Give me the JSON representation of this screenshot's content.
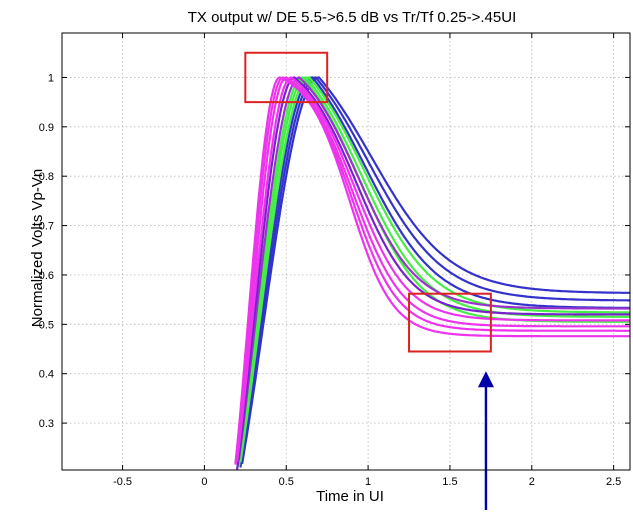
{
  "chart_data": {
    "type": "line",
    "title": "TX output w/ DE 5.5->6.5 dB vs Tr/Tf 0.25->.45UI",
    "xlabel": "Time in UI",
    "ylabel": "Normalized Volts Vp-Vn",
    "xlim": [
      -0.87,
      2.6
    ],
    "ylim": [
      0.205,
      1.09
    ],
    "x_ticks": [
      -0.5,
      0,
      0.5,
      1,
      1.5,
      2,
      2.5
    ],
    "x_tick_labels": [
      "-0.5",
      "0",
      "0.5",
      "1",
      "1.5",
      "2",
      "2.5"
    ],
    "y_ticks": [
      0.3,
      0.4,
      0.5,
      0.6,
      0.7,
      0.8,
      0.9,
      1
    ],
    "y_tick_labels": [
      "0.3",
      "0.4",
      "0.5",
      "0.6",
      "0.7",
      "0.8",
      "0.9",
      "1"
    ],
    "grid": true,
    "series": [
      {
        "color": "#3333cc",
        "start": 0.02,
        "peak_t": 0.7,
        "fall_t": 1.02,
        "fall_w": 0.24,
        "steady": 0.563
      },
      {
        "color": "#3333cc",
        "start": 0.02,
        "peak_t": 0.68,
        "fall_t": 1.0,
        "fall_w": 0.23,
        "steady": 0.548
      },
      {
        "color": "#3333cc",
        "start": 0.02,
        "peak_t": 0.66,
        "fall_t": 0.98,
        "fall_w": 0.22,
        "steady": 0.533
      },
      {
        "color": "#44ee44",
        "start": 0.03,
        "peak_t": 0.64,
        "fall_t": 0.98,
        "fall_w": 0.21,
        "steady": 0.524
      },
      {
        "color": "#44ee44",
        "start": 0.03,
        "peak_t": 0.62,
        "fall_t": 0.96,
        "fall_w": 0.2,
        "steady": 0.515
      },
      {
        "color": "#44ee44",
        "start": 0.04,
        "peak_t": 0.6,
        "fall_t": 0.95,
        "fall_w": 0.19,
        "steady": 0.505
      },
      {
        "color": "#9933cc",
        "start": 0.04,
        "peak_t": 0.58,
        "fall_t": 0.94,
        "fall_w": 0.18,
        "steady": 0.532
      },
      {
        "color": "#7722cc",
        "start": 0.05,
        "peak_t": 0.55,
        "fall_t": 0.93,
        "fall_w": 0.17,
        "steady": 0.52
      },
      {
        "color": "#ee33ee",
        "start": 0.05,
        "peak_t": 0.53,
        "fall_t": 0.92,
        "fall_w": 0.16,
        "steady": 0.508
      },
      {
        "color": "#ee33ee",
        "start": 0.06,
        "peak_t": 0.5,
        "fall_t": 0.91,
        "fall_w": 0.15,
        "steady": 0.496
      },
      {
        "color": "#ee33ee",
        "start": 0.06,
        "peak_t": 0.48,
        "fall_t": 0.9,
        "fall_w": 0.14,
        "steady": 0.487
      },
      {
        "color": "#ee33ee",
        "start": 0.07,
        "peak_t": 0.46,
        "fall_t": 0.89,
        "fall_w": 0.13,
        "steady": 0.476
      }
    ],
    "annotations": [
      {
        "type": "box",
        "color": "#dd2222",
        "x0": 0.25,
        "x1": 0.75,
        "y0": 0.95,
        "y1": 1.05
      },
      {
        "type": "box",
        "color": "#dd2222",
        "x0": 1.25,
        "x1": 1.75,
        "y0": 0.445,
        "y1": 0.562
      },
      {
        "type": "arrow",
        "color": "#0000aa",
        "x": 1.72,
        "y_tail": 0.11,
        "y_head": 0.405
      }
    ]
  }
}
